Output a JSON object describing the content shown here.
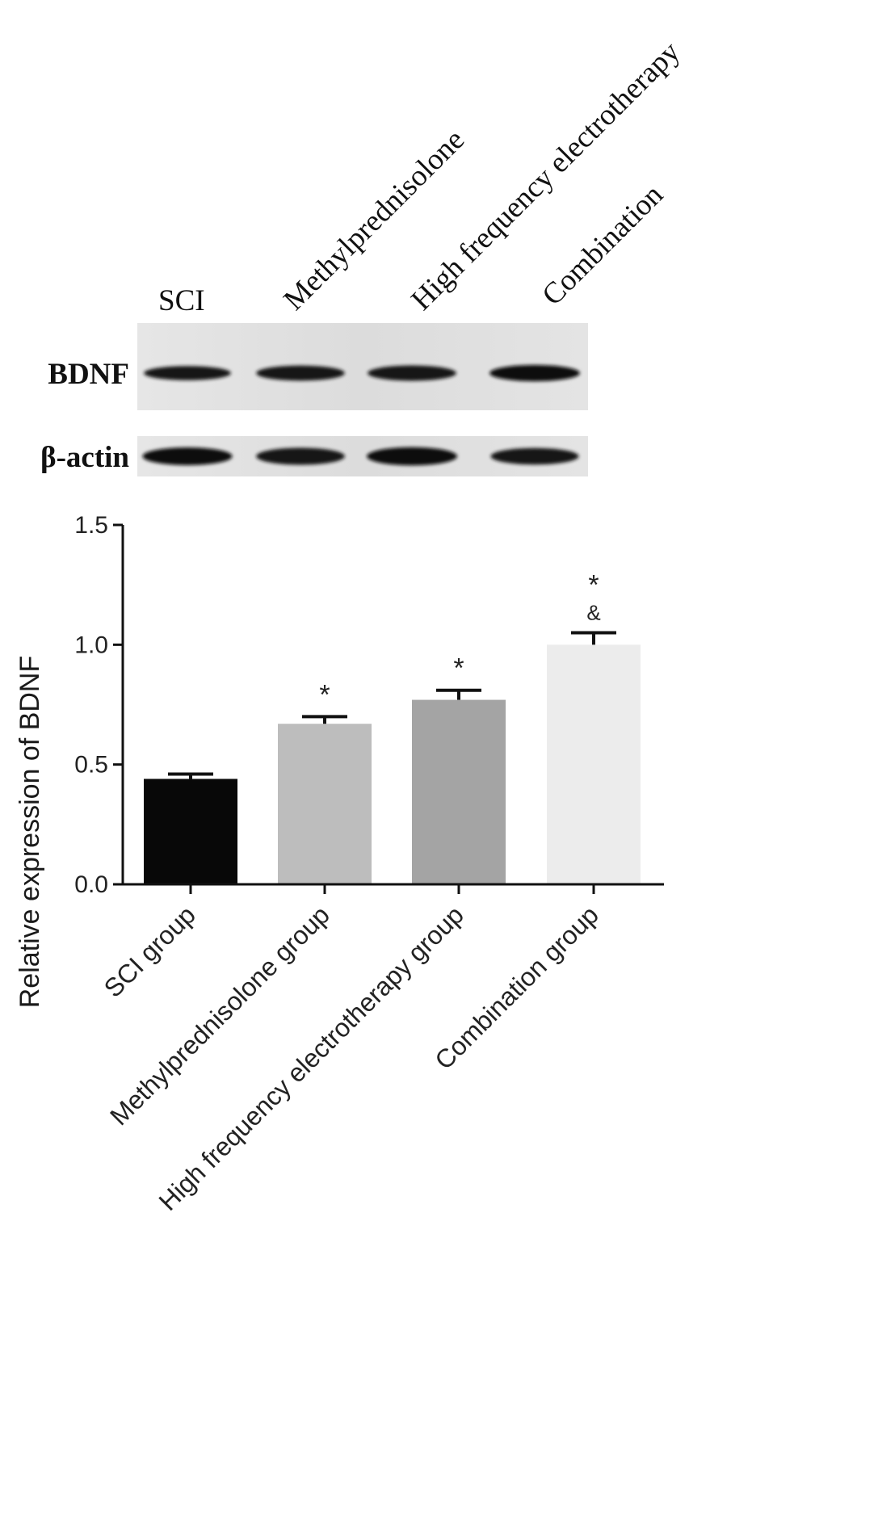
{
  "blot": {
    "lane_labels": [
      "SCI",
      "Methylprednisolone",
      "High frequency electrotherapy",
      "Combination"
    ],
    "rows": [
      {
        "label": "BDNF",
        "band_intensity": [
          0.55,
          0.68,
          0.7,
          0.85
        ]
      },
      {
        "label": "β-actin",
        "band_intensity": [
          0.8,
          0.7,
          0.85,
          0.65
        ]
      }
    ]
  },
  "chart_data": {
    "type": "bar",
    "categories": [
      "SCI group",
      "Methylprednisolone group",
      "High frequency electrotherapy group",
      "Combination group"
    ],
    "values": [
      0.44,
      0.67,
      0.77,
      1.0
    ],
    "errors": [
      0.02,
      0.03,
      0.04,
      0.05
    ],
    "annotations": [
      "",
      "*",
      "*",
      "*\n&"
    ],
    "bar_colors": [
      "#080808",
      "#bdbdbd",
      "#a4a4a4",
      "#ececec"
    ],
    "ylabel": "Relative expression of BDNF",
    "ylim": [
      0,
      1.5
    ],
    "yticks": [
      "0.0",
      "0.5",
      "1.0",
      "1.5"
    ],
    "grid": false
  }
}
